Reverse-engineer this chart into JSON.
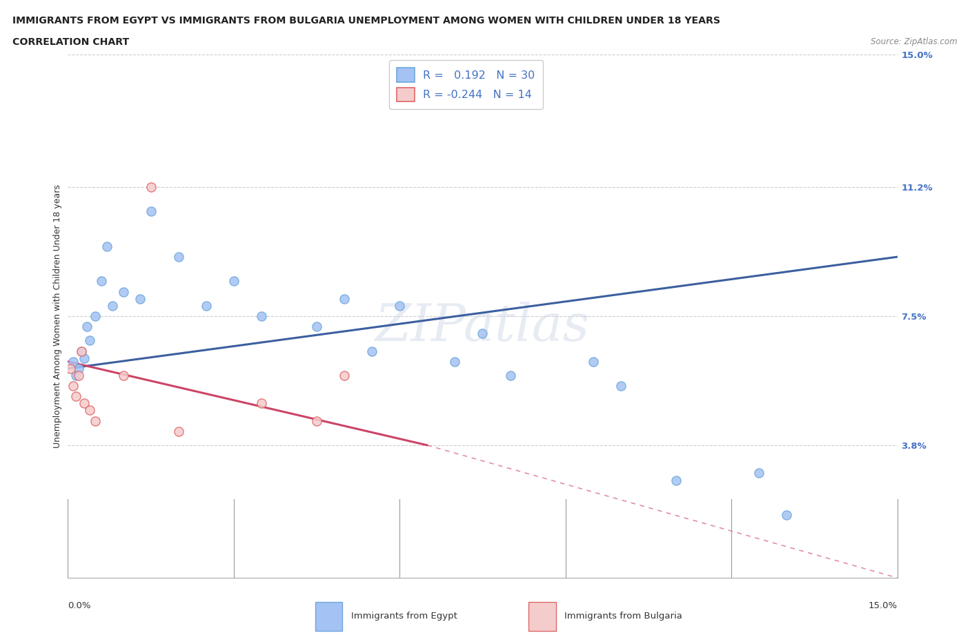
{
  "title_line1": "IMMIGRANTS FROM EGYPT VS IMMIGRANTS FROM BULGARIA UNEMPLOYMENT AMONG WOMEN WITH CHILDREN UNDER 18 YEARS",
  "title_line2": "CORRELATION CHART",
  "source_text": "Source: ZipAtlas.com",
  "xlabel_bottom_left": "0.0%",
  "xlabel_bottom_right": "15.0%",
  "ylabel_right_ticks": [
    "15.0%",
    "11.2%",
    "7.5%",
    "3.8%"
  ],
  "ylabel_right_vals": [
    15.0,
    11.2,
    7.5,
    3.8
  ],
  "xmin": 0.0,
  "xmax": 15.0,
  "ymin": 0.0,
  "ymax": 15.0,
  "ylabel": "Unemployment Among Women with Children Under 18 years",
  "watermark": "ZIPatlas",
  "egypt_color": "#6fa8dc",
  "egypt_fill": "#a4c2f4",
  "bulgaria_color": "#e06666",
  "bulgaria_fill": "#f4cccc",
  "trendline_egypt_color": "#3c5fa0",
  "trendline_bulgaria_color": "#cc4466",
  "legend_egypt_R": "0.192",
  "legend_egypt_N": "30",
  "legend_bulgaria_R": "-0.244",
  "legend_bulgaria_N": "14",
  "egypt_x": [
    0.1,
    0.15,
    0.2,
    0.25,
    0.3,
    0.35,
    0.4,
    0.5,
    0.6,
    0.7,
    0.8,
    1.0,
    1.3,
    1.5,
    2.0,
    2.5,
    3.0,
    3.5,
    4.5,
    5.0,
    5.5,
    6.0,
    7.0,
    7.5,
    8.0,
    9.5,
    10.0,
    11.0,
    12.5,
    13.0
  ],
  "egypt_y": [
    6.2,
    5.8,
    6.0,
    6.5,
    6.3,
    7.2,
    6.8,
    7.5,
    8.5,
    9.5,
    7.8,
    8.2,
    8.0,
    10.5,
    9.2,
    7.8,
    8.5,
    7.5,
    7.2,
    8.0,
    6.5,
    7.8,
    6.2,
    7.0,
    5.8,
    6.2,
    5.5,
    2.8,
    3.0,
    1.8
  ],
  "bulgaria_x": [
    0.05,
    0.1,
    0.15,
    0.2,
    0.25,
    0.3,
    0.4,
    0.5,
    1.0,
    1.5,
    2.0,
    3.5,
    4.5,
    5.0
  ],
  "bulgaria_y": [
    6.0,
    5.5,
    5.2,
    5.8,
    6.5,
    5.0,
    4.8,
    4.5,
    5.8,
    11.2,
    4.2,
    5.0,
    4.5,
    5.8
  ],
  "trendline_egypt_x0": 0.0,
  "trendline_egypt_y0": 6.0,
  "trendline_egypt_x1": 15.0,
  "trendline_egypt_y1": 9.2,
  "trendline_bulgaria_x0": 0.0,
  "trendline_bulgaria_y0": 6.2,
  "trendline_bulgaria_x1_solid": 6.5,
  "trendline_bulgaria_y1_solid": 3.8,
  "trendline_bulgaria_x1_dashed": 15.0,
  "trendline_bulgaria_y1_dashed": 0.0
}
